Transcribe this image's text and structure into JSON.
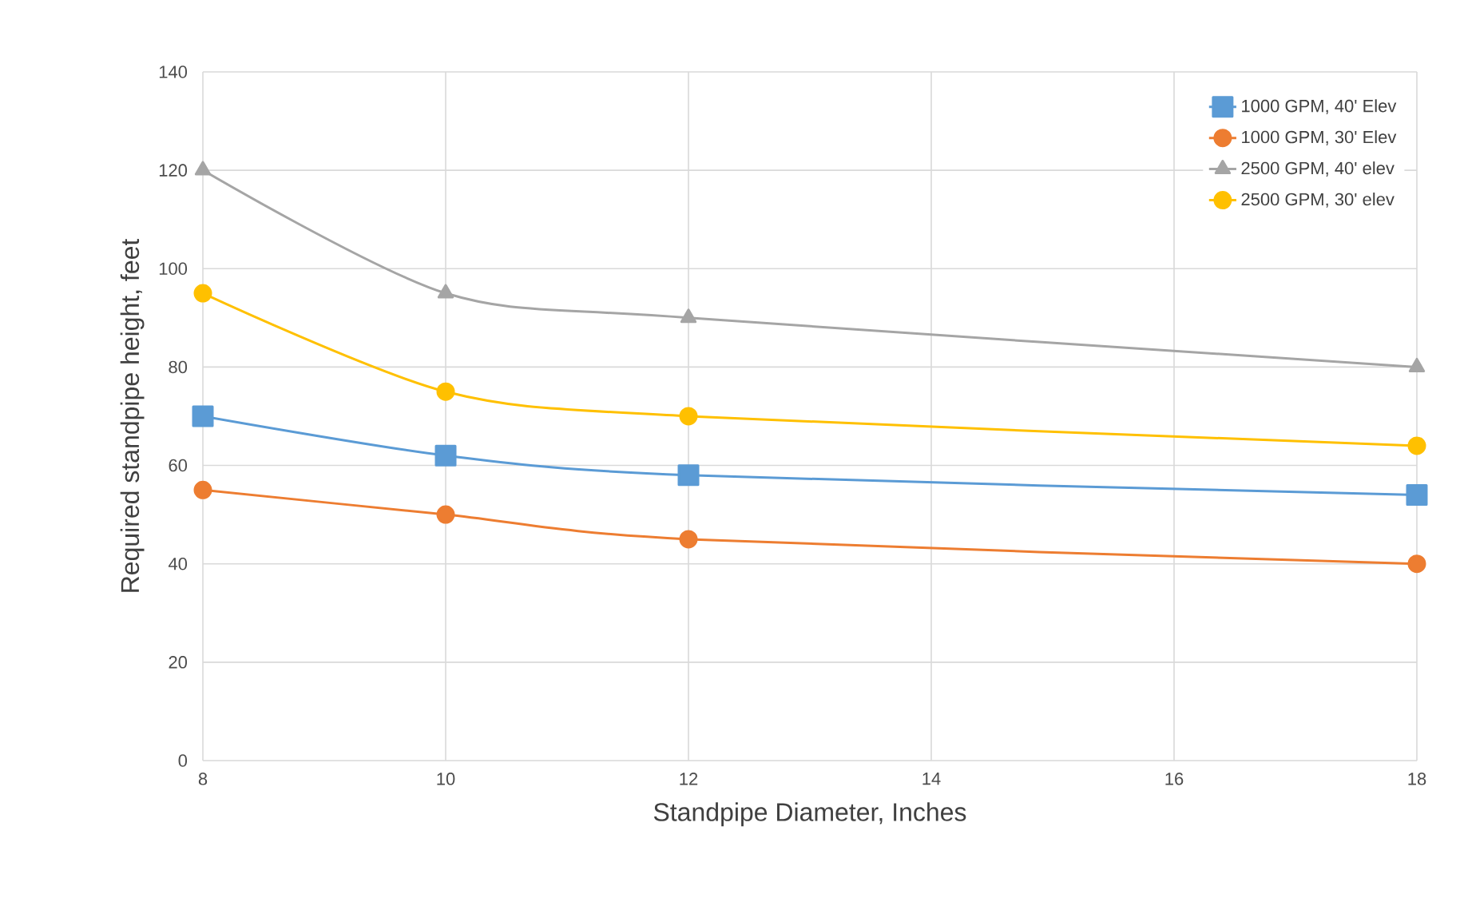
{
  "chart_data": {
    "type": "line",
    "xlabel": "Standpipe Diameter, Inches",
    "ylabel": "Required standpipe height, feet",
    "x": [
      8,
      10,
      12,
      18
    ],
    "series": [
      {
        "name": "1000 GPM, 40' Elev",
        "color": "#5b9bd5",
        "marker": "square",
        "values": [
          70,
          62,
          58,
          54
        ]
      },
      {
        "name": "1000 GPM, 30' Elev",
        "color": "#ed7d31",
        "marker": "circle",
        "values": [
          55,
          50,
          45,
          40
        ]
      },
      {
        "name": "2500 GPM, 40' elev",
        "color": "#a5a5a5",
        "marker": "triangle",
        "values": [
          120,
          95,
          90,
          80
        ]
      },
      {
        "name": "2500 GPM, 30' elev",
        "color": "#ffc000",
        "marker": "circle",
        "values": [
          95,
          75,
          70,
          64
        ]
      }
    ],
    "xlim": [
      8,
      18
    ],
    "xticks": [
      8,
      10,
      12,
      14,
      16,
      18
    ],
    "ylim": [
      0,
      140
    ],
    "yticks": [
      0,
      20,
      40,
      60,
      80,
      100,
      120,
      140
    ],
    "grid": true,
    "legend": "top right",
    "line_style": "solid"
  }
}
